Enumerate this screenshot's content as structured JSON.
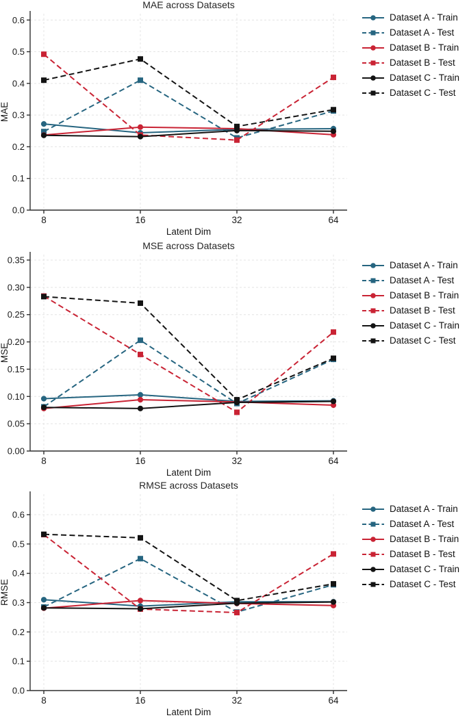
{
  "colors": {
    "dataset_a": "#266580",
    "dataset_b": "#c92334",
    "dataset_c": "#131313",
    "grid": "#e4e4e4",
    "axis": "#2f2f2f",
    "tick_text": "#191919",
    "title_text": "#262626",
    "background": "#ffffff"
  },
  "chart_data": [
    {
      "type": "line",
      "title": "MAE across Datasets",
      "xlabel": "Latent Dim",
      "ylabel": "MAE",
      "x_categories": [
        "8",
        "16",
        "32",
        "64"
      ],
      "ylim": [
        0,
        0.62
      ],
      "yticks": [
        0.0,
        0.1,
        0.2,
        0.3,
        0.4,
        0.5,
        0.6
      ],
      "ytick_labels": [
        "0.0",
        "0.1",
        "0.2",
        "0.3",
        "0.4",
        "0.5",
        "0.6"
      ],
      "grid": true,
      "legend_position": "right",
      "series": [
        {
          "name": "Dataset A - Train",
          "color": "dataset_a",
          "style": "solid",
          "marker": "circle",
          "values": [
            0.272,
            0.244,
            0.255,
            0.257
          ]
        },
        {
          "name": "Dataset A - Test",
          "color": "dataset_a",
          "style": "dashed",
          "marker": "square",
          "values": [
            0.248,
            0.41,
            0.228,
            0.313
          ]
        },
        {
          "name": "Dataset B - Train",
          "color": "dataset_b",
          "style": "solid",
          "marker": "circle",
          "values": [
            0.237,
            0.262,
            0.257,
            0.238
          ]
        },
        {
          "name": "Dataset B - Test",
          "color": "dataset_b",
          "style": "dashed",
          "marker": "square",
          "values": [
            0.492,
            0.237,
            0.221,
            0.419
          ]
        },
        {
          "name": "Dataset C - Train",
          "color": "dataset_c",
          "style": "solid",
          "marker": "circle",
          "values": [
            0.236,
            0.232,
            0.251,
            0.249
          ]
        },
        {
          "name": "Dataset C - Test",
          "color": "dataset_c",
          "style": "dashed",
          "marker": "square",
          "values": [
            0.41,
            0.477,
            0.264,
            0.317
          ]
        }
      ]
    },
    {
      "type": "line",
      "title": "MSE across Datasets",
      "xlabel": "Latent Dim",
      "ylabel": "MSE",
      "x_categories": [
        "8",
        "16",
        "32",
        "64"
      ],
      "ylim": [
        0,
        0.36
      ],
      "yticks": [
        0.0,
        0.05,
        0.1,
        0.15,
        0.2,
        0.25,
        0.3,
        0.35
      ],
      "ytick_labels": [
        "0.00",
        "0.05",
        "0.10",
        "0.15",
        "0.20",
        "0.25",
        "0.30",
        "0.35"
      ],
      "grid": true,
      "legend_position": "right",
      "series": [
        {
          "name": "Dataset A - Train",
          "color": "dataset_a",
          "style": "solid",
          "marker": "circle",
          "values": [
            0.096,
            0.103,
            0.091,
            0.092
          ]
        },
        {
          "name": "Dataset A - Test",
          "color": "dataset_a",
          "style": "dashed",
          "marker": "square",
          "values": [
            0.081,
            0.203,
            0.087,
            0.168
          ]
        },
        {
          "name": "Dataset B - Train",
          "color": "dataset_b",
          "style": "solid",
          "marker": "circle",
          "values": [
            0.078,
            0.094,
            0.09,
            0.084
          ]
        },
        {
          "name": "Dataset B - Test",
          "color": "dataset_b",
          "style": "dashed",
          "marker": "square",
          "values": [
            0.284,
            0.177,
            0.071,
            0.218
          ]
        },
        {
          "name": "Dataset C - Train",
          "color": "dataset_c",
          "style": "solid",
          "marker": "circle",
          "values": [
            0.08,
            0.078,
            0.089,
            0.091
          ]
        },
        {
          "name": "Dataset C - Test",
          "color": "dataset_c",
          "style": "dashed",
          "marker": "square",
          "values": [
            0.283,
            0.271,
            0.094,
            0.17
          ]
        }
      ]
    },
    {
      "type": "line",
      "title": "RMSE across Datasets",
      "xlabel": "Latent Dim",
      "ylabel": "RMSE",
      "x_categories": [
        "8",
        "16",
        "32",
        "64"
      ],
      "ylim": [
        0,
        0.67
      ],
      "yticks": [
        0.0,
        0.1,
        0.2,
        0.3,
        0.4,
        0.5,
        0.6
      ],
      "ytick_labels": [
        "0.0",
        "0.1",
        "0.2",
        "0.3",
        "0.4",
        "0.5",
        "0.6"
      ],
      "grid": true,
      "legend_position": "right",
      "series": [
        {
          "name": "Dataset A - Train",
          "color": "dataset_a",
          "style": "solid",
          "marker": "circle",
          "values": [
            0.31,
            0.288,
            0.303,
            0.303
          ]
        },
        {
          "name": "Dataset A - Test",
          "color": "dataset_a",
          "style": "dashed",
          "marker": "square",
          "values": [
            0.285,
            0.45,
            0.268,
            0.361
          ]
        },
        {
          "name": "Dataset B - Train",
          "color": "dataset_b",
          "style": "solid",
          "marker": "circle",
          "values": [
            0.281,
            0.307,
            0.297,
            0.29
          ]
        },
        {
          "name": "Dataset B - Test",
          "color": "dataset_b",
          "style": "dashed",
          "marker": "square",
          "values": [
            0.532,
            0.278,
            0.266,
            0.466
          ]
        },
        {
          "name": "Dataset C - Train",
          "color": "dataset_c",
          "style": "solid",
          "marker": "circle",
          "values": [
            0.282,
            0.279,
            0.298,
            0.302
          ]
        },
        {
          "name": "Dataset C - Test",
          "color": "dataset_c",
          "style": "dashed",
          "marker": "square",
          "values": [
            0.533,
            0.521,
            0.307,
            0.364
          ]
        }
      ]
    }
  ]
}
